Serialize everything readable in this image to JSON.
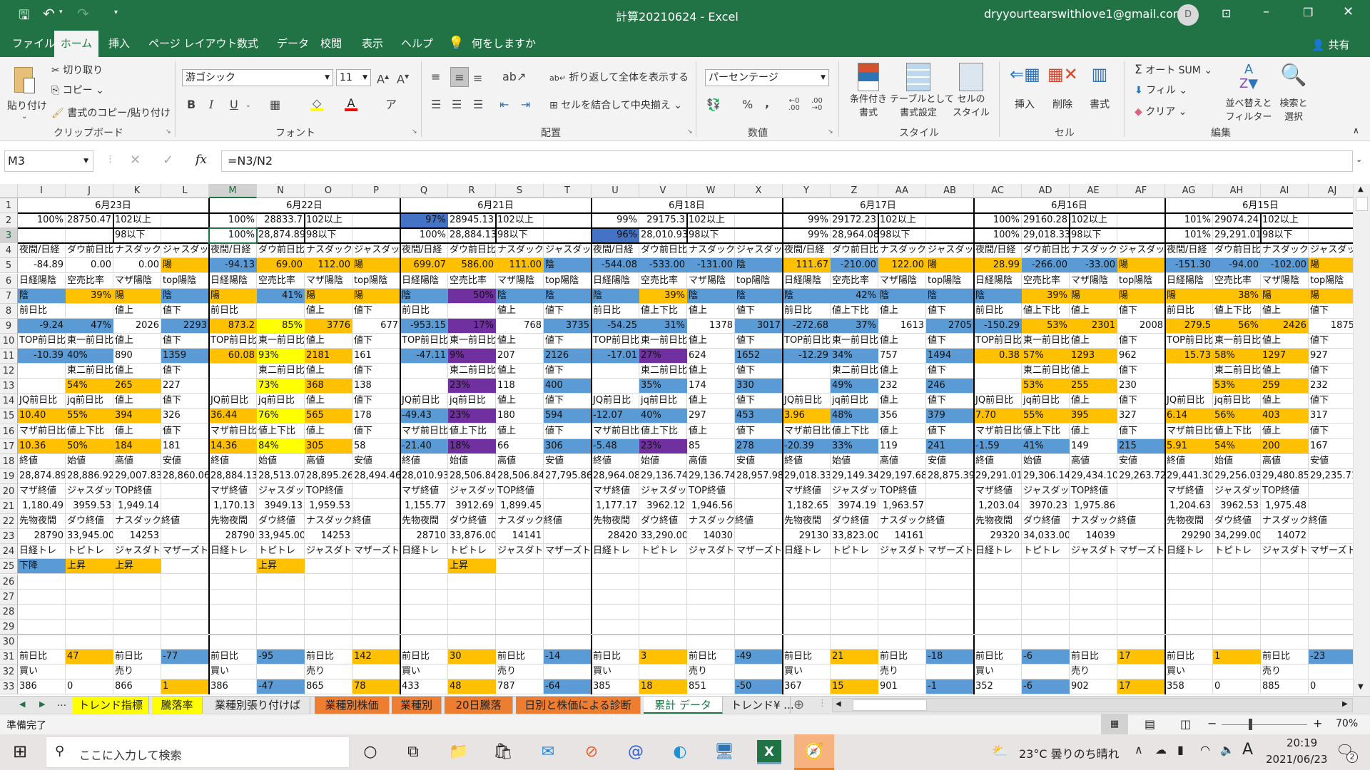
{
  "window": {
    "title": "計算20210624  -  Excel",
    "account": "dryyourtearswithlove1@gmail.com",
    "avatar": "D"
  },
  "menu": {
    "tabs": [
      "ファイル",
      "ホーム",
      "挿入",
      "ページ レイアウト",
      "数式",
      "データ",
      "校閲",
      "表示",
      "ヘルプ"
    ],
    "active": 1,
    "tell_me": "何をしますか",
    "share": "共有"
  },
  "ribbon": {
    "clipboard": {
      "paste": "貼り付け",
      "cut": "切り取り",
      "copy": "コピー",
      "format_painter": "書式のコピー/貼り付け",
      "label": "クリップボード"
    },
    "font": {
      "name": "游ゴシック",
      "size": "11",
      "bold": "B",
      "italic": "I",
      "underline": "U",
      "label": "フォント",
      "fill_color": "#FFFF00",
      "font_color": "#FF0000"
    },
    "alignment": {
      "wrap": "折り返して全体を表示する",
      "merge": "セルを結合して中央揃え",
      "label": "配置"
    },
    "number": {
      "format": "パーセンテージ",
      "percent": "%",
      "comma": ",",
      "label": "数値"
    },
    "styles": {
      "conditional": [
        "条件付き",
        "書式"
      ],
      "table": [
        "テーブルとして",
        "書式設定"
      ],
      "cell": [
        "セルの",
        "スタイル"
      ],
      "label": "スタイル"
    },
    "cells": {
      "insert": "挿入",
      "delete": "削除",
      "format": "書式",
      "label": "セル"
    },
    "editing": {
      "autosum": "オート SUM",
      "fill": "フィル",
      "clear": "クリア",
      "sort": [
        "並べ替えと",
        "フィルター"
      ],
      "find": [
        "検索と",
        "選択"
      ],
      "label": "編集"
    }
  },
  "formula_bar": {
    "name_box": "M3",
    "formula": "=N3/N2"
  },
  "sheet": {
    "selected_cell": "M3",
    "fill_colors": {
      "o": "#FFC000",
      "b": "#5B9BD5",
      "y": "#FFFF00",
      "p": "#7030A0",
      "d": "#4472C4"
    },
    "columns": [
      "I",
      "J",
      "K",
      "L",
      "M",
      "N",
      "O",
      "P",
      "Q",
      "R",
      "S",
      "T",
      "U",
      "V",
      "W",
      "X",
      "Y",
      "Z",
      "AA",
      "AB",
      "AC",
      "AD",
      "AE",
      "AF",
      "AG",
      "AH",
      "AI",
      "AJ"
    ],
    "dates": [
      "6月23日",
      "6月22日",
      "6月21日",
      "6月18日",
      "6月17日",
      "6月16日",
      "6月15日"
    ],
    "rows": [
      {
        "num": "1",
        "cells": [],
        "fills": ""
      },
      {
        "num": "2",
        "cells": [
          "100%",
          "28750.47",
          "102以上",
          "",
          "100%",
          "28833.7",
          "102以上",
          "",
          "97%",
          "28945.13",
          "102以上",
          "",
          "99%",
          "29175.3",
          "102以上",
          "",
          "99%",
          "29172.23",
          "102以上",
          "",
          "100%",
          "29160.28",
          "102以上",
          "",
          "101%",
          "29074.24",
          "102以上",
          ""
        ],
        "fills": "....|....|d...|....|....|....|...."
      },
      {
        "num": "3",
        "cells": [
          "",
          "",
          "98以下",
          "",
          "100%",
          "28,874.89",
          "98以下",
          "",
          "100%",
          "28,884.13",
          "98以下",
          "",
          "96%",
          "28,010.93",
          "98以下",
          "",
          "99%",
          "28,964.08",
          "98以下",
          "",
          "100%",
          "29,018.33",
          "98以下",
          "",
          "101%",
          "29,291.01",
          "98以下",
          ""
        ],
        "fills": "....|....|....|d...|....|....|...."
      },
      {
        "num": "4",
        "cells": [
          "夜間/日経",
          "ダウ前日比",
          "ナスダック",
          "ジャスダック",
          "夜間/日経",
          "ダウ前日比",
          "ナスダック",
          "ジャスダック",
          "夜間/日経",
          "ダウ前日比",
          "ナスダック",
          "ジャスダック",
          "夜間/日経",
          "ダウ前日比",
          "ナスダック",
          "ジャスダック",
          "夜間/日経",
          "ダウ前日比",
          "ナスダック",
          "ジャスダック",
          "夜間/日経",
          "ダウ前日比",
          "ナスダック",
          "ジャスダック",
          "夜間/日経",
          "ダウ前日比",
          "ナスダック",
          "ジャスダック"
        ],
        "fills": ""
      },
      {
        "num": "5",
        "cells": [
          "-84.89",
          "0.00",
          "0.00",
          "陽",
          "-94.13",
          "69.00",
          "112.00",
          "陽",
          "699.07",
          "586.00",
          "111.00",
          "陰",
          "-544.08",
          "-533.00",
          "-131.00",
          "陰",
          "111.67",
          "-210.00",
          "122.00",
          "陽",
          "28.99",
          "-266.00",
          "-33.00",
          "陽",
          "-151.30",
          "-94.00",
          "-102.00",
          "陽"
        ],
        "fills": "...o|booo|ooob|bbbb|oboo|obbo|bbbo"
      },
      {
        "num": "6",
        "cells": [
          "日経陽陰",
          "空売比率",
          "マザ陽陰",
          "top陽陰",
          "日経陽陰",
          "空売比率",
          "マザ陽陰",
          "top陽陰",
          "日経陽陰",
          "空売比率",
          "マザ陽陰",
          "top陽陰",
          "日経陽陰",
          "空売比率",
          "マザ陽陰",
          "top陽陰",
          "日経陽陰",
          "空売比率",
          "マザ陽陰",
          "top陽陰",
          "日経陽陰",
          "空売比率",
          "マザ陽陰",
          "top陽陰",
          "日経陽陰",
          "空売比率",
          "マザ陽陰",
          "top陽陰"
        ],
        "fills": ""
      },
      {
        "num": "7",
        "cells": [
          "陰",
          "39%",
          "陽",
          "陰",
          "陽",
          "41%",
          "陽",
          "陽",
          "陰",
          "50%",
          "陰",
          "陰",
          "陰",
          "39%",
          "陰",
          "陰",
          "陰",
          "42%",
          "陰",
          "陰",
          "陰",
          "39%",
          "陽",
          "陽",
          "陽",
          "38%",
          "陽",
          "陽"
        ],
        "fills": "boob|oboo|bpbb|bobb|bbbb|booo|oooo"
      },
      {
        "num": "8",
        "cells": [
          "前日比",
          "",
          "値上",
          "値下",
          "前日比",
          "",
          "値上",
          "値下",
          "前日比",
          "",
          "値上",
          "値下",
          "前日比",
          "値上下比",
          "値上",
          "値下",
          "前日比",
          "値上下比",
          "値上",
          "値下",
          "前日比",
          "値上下比",
          "値上",
          "値下",
          "前日比",
          "値上下比",
          "値上",
          "値下"
        ],
        "fills": ""
      },
      {
        "num": "9",
        "cells": [
          "-9.24",
          "47%",
          "2026",
          "2293",
          "873.2",
          "85%",
          "3776",
          "677",
          "-953.15",
          "17%",
          "768",
          "3735",
          "-54.25",
          "31%",
          "1378",
          "3017",
          "-272.68",
          "37%",
          "1613",
          "2705",
          "-150.29",
          "53%",
          "2301",
          "2008",
          "279.5",
          "56%",
          "2426",
          "1875"
        ],
        "fills": "bb.b|oyo.|bp.b|bb.b|bb.b|boo.|ooo."
      },
      {
        "num": "10",
        "cells": [
          "TOP前日比",
          "東一前日比",
          "値上",
          "値下",
          "TOP前日比",
          "東一前日比",
          "値上",
          "値下",
          "TOP前日比",
          "東一前日比",
          "値上",
          "値下",
          "TOP前日比",
          "東一前日比",
          "値上",
          "値下",
          "TOP前日比",
          "東一前日比",
          "値上",
          "値下",
          "TOP前日比",
          "東一前日比",
          "値上",
          "値下",
          "TOP前日比",
          "東一前日比",
          "値上",
          "値下"
        ],
        "fills": ""
      },
      {
        "num": "11",
        "cells": [
          "-10.39",
          "40%",
          "890",
          "1359",
          "60.08",
          "93%",
          "2181",
          "161",
          "-47.11",
          "9%",
          "207",
          "2126",
          "-17.01",
          "27%",
          "624",
          "1652",
          "-12.29",
          "34%",
          "757",
          "1494",
          "0.38",
          "57%",
          "1293",
          "962",
          "15.73",
          "58%",
          "1297",
          "927"
        ],
        "fills": "bb.b|oyo.|bp.b|bp.b|bb.b|ooo.|ooo."
      },
      {
        "num": "12",
        "cells": [
          "",
          "東二前日比",
          "値上",
          "値下",
          "",
          "東二前日比",
          "値上",
          "値下",
          "",
          "東二前日比",
          "値上",
          "値下",
          "",
          "東二前日比",
          "値上",
          "値下",
          "",
          "東二前日比",
          "値上",
          "値下",
          "",
          "東二前日比",
          "値上",
          "値下",
          "",
          "東二前日比",
          "値上",
          "値下"
        ],
        "fills": ""
      },
      {
        "num": "13",
        "cells": [
          "",
          "54%",
          "265",
          "227",
          "",
          "73%",
          "368",
          "138",
          "",
          "23%",
          "118",
          "400",
          "",
          "35%",
          "174",
          "330",
          "",
          "49%",
          "232",
          "246",
          "",
          "53%",
          "255",
          "230",
          "",
          "53%",
          "259",
          "232"
        ],
        "fills": ".oo.|.yo.|.p.b|.b.b|.b.b|.oo.|.oo."
      },
      {
        "num": "14",
        "cells": [
          "JQ前日比",
          "jq前日比",
          "値上",
          "値下",
          "JQ前日比",
          "jq前日比",
          "値上",
          "値下",
          "JQ前日比",
          "jq前日比",
          "値上",
          "値下",
          "JQ前日比",
          "jq前日比",
          "値上",
          "値下",
          "JQ前日比",
          "jq前日比",
          "値上",
          "値下",
          "JQ前日比",
          "jq前日比",
          "値上",
          "値下",
          "JQ前日比",
          "jq前日比",
          "値上",
          "値下"
        ],
        "fills": ""
      },
      {
        "num": "15",
        "cells": [
          "10.40",
          "55%",
          "394",
          "326",
          "36.44",
          "76%",
          "565",
          "178",
          "-49.43",
          "23%",
          "180",
          "594",
          "-12.07",
          "40%",
          "297",
          "453",
          "3.96",
          "48%",
          "356",
          "379",
          "7.70",
          "55%",
          "395",
          "327",
          "6.14",
          "56%",
          "403",
          "317"
        ],
        "fills": "ooo.|oyo.|bp.b|bb.b|ob.b|ooo.|ooo."
      },
      {
        "num": "16",
        "cells": [
          "マザ前日比",
          "値上下比",
          "値上",
          "値下",
          "マザ前日比",
          "値上下比",
          "値上",
          "値下",
          "マザ前日比",
          "値上下比",
          "値上",
          "値下",
          "マザ前日比",
          "値上下比",
          "値上",
          "値下",
          "マザ前日比",
          "値上下比",
          "値上",
          "値下",
          "マザ前日比",
          "値上下比",
          "値上",
          "値下",
          "マザ前日比",
          "値上下比",
          "値上",
          "値下"
        ],
        "fills": ""
      },
      {
        "num": "17",
        "cells": [
          "10.36",
          "50%",
          "184",
          "181",
          "14.36",
          "84%",
          "305",
          "58",
          "-21.40",
          "18%",
          "66",
          "306",
          "-5.48",
          "23%",
          "85",
          "278",
          "-20.39",
          "33%",
          "119",
          "241",
          "-1.59",
          "41%",
          "149",
          "215",
          "5.91",
          "54%",
          "200",
          "167"
        ],
        "fills": "ooo.|oyo.|bp.b|bp.b|bb.b|bb.b|ooo."
      },
      {
        "num": "18",
        "cells": [
          "終値",
          "始値",
          "高値",
          "安値",
          "終値",
          "始値",
          "高値",
          "安値",
          "終値",
          "始値",
          "高値",
          "安値",
          "終値",
          "始値",
          "高値",
          "安値",
          "終値",
          "始値",
          "高値",
          "安値",
          "終値",
          "始値",
          "高値",
          "安値",
          "終値",
          "始値",
          "高値",
          "安値"
        ],
        "fills": ""
      },
      {
        "num": "19",
        "cells": [
          "28,874.89",
          "28,886.92",
          "29,007.83",
          "28,860.06",
          "28,884.13",
          "28,513.07",
          "28,895.26",
          "28,494.46",
          "28,010.93",
          "28,506.84",
          "28,506.84",
          "27,795.86",
          "28,964.08",
          "29,136.74",
          "29,136.74",
          "28,957.98",
          "29,018.33",
          "29,149.34",
          "29,197.68",
          "28,875.39",
          "29,291.01",
          "29,306.14",
          "29,434.10",
          "29,263.72",
          "29,441.30",
          "29,256.03",
          "29,480.85",
          "29,235.71"
        ],
        "fills": ""
      },
      {
        "num": "20",
        "cells": [
          "マザ終値",
          "ジャスダック",
          "TOP終値",
          "",
          "マザ終値",
          "ジャスダック",
          "TOP終値",
          "",
          "マザ終値",
          "ジャスダック",
          "TOP終値",
          "",
          "マザ終値",
          "ジャスダック",
          "TOP終値",
          "",
          "マザ終値",
          "ジャスダック",
          "TOP終値",
          "",
          "マザ終値",
          "ジャスダック",
          "TOP終値",
          "",
          "マザ終値",
          "ジャスダック",
          "TOP終値",
          ""
        ],
        "fills": ""
      },
      {
        "num": "21",
        "cells": [
          "1,180.49",
          "3959.53",
          "1,949.14",
          "",
          "1,170.13",
          "3949.13",
          "1,959.53",
          "",
          "1,155.77",
          "3912.69",
          "1,899.45",
          "",
          "1,177.17",
          "3962.12",
          "1,946.56",
          "",
          "1,182.65",
          "3974.19",
          "1,963.57",
          "",
          "1,203.04",
          "3970.23",
          "1,975.86",
          "",
          "1,204.63",
          "3962.53",
          "1,975.48",
          ""
        ],
        "fills": ""
      },
      {
        "num": "22",
        "cells": [
          "先物夜間",
          "ダウ終値",
          "ナスダック終値",
          "",
          "先物夜間",
          "ダウ終値",
          "ナスダック終値",
          "",
          "先物夜間",
          "ダウ終値",
          "ナスダック終値",
          "",
          "先物夜間",
          "ダウ終値",
          "ナスダック終値",
          "",
          "先物夜間",
          "ダウ終値",
          "ナスダック終値",
          "",
          "先物夜間",
          "ダウ終値",
          "ナスダック終値",
          "",
          "先物夜間",
          "ダウ終値",
          "ナスダック終値",
          ""
        ],
        "fills": ""
      },
      {
        "num": "23",
        "cells": [
          "28790",
          "33,945.00",
          "14253",
          "",
          "28790",
          "33,945.00",
          "14253",
          "",
          "28710",
          "33,876.00",
          "14141",
          "",
          "28420",
          "33,290.00",
          "14030",
          "",
          "29130",
          "33,823.00",
          "14161",
          "",
          "29320",
          "34,033.00",
          "14039",
          "",
          "29290",
          "34,299.00",
          "14072",
          ""
        ],
        "fills": ""
      },
      {
        "num": "24",
        "cells": [
          "日経トレ",
          "トピトレ",
          "ジャスダトレ",
          "マザーズトレ",
          "日経トレ",
          "トピトレ",
          "ジャスダトレ",
          "マザーズトレ",
          "日経トレ",
          "トピトレ",
          "ジャスダトレ",
          "マザーズトレ",
          "日経トレ",
          "トピトレ",
          "ジャスダトレ",
          "マザーズトレ",
          "日経トレ",
          "トピトレ",
          "ジャスダトレ",
          "マザーズトレ",
          "日経トレ",
          "トピトレ",
          "ジャスダトレ",
          "マザーズトレ",
          "日経トレ",
          "トピトレ",
          "ジャスダトレ",
          "マザーズトレ"
        ],
        "fills": ""
      },
      {
        "num": "25",
        "cells": [
          "下降",
          "上昇",
          "上昇",
          "",
          "",
          "上昇",
          "",
          "",
          "",
          "上昇",
          "",
          "",
          "",
          "",
          "",
          "",
          "",
          "",
          "",
          "",
          "",
          "",
          "",
          "",
          "",
          "",
          "",
          ""
        ],
        "fills": "boo.|.o..|.o..|....|....|....|...."
      },
      {
        "num": "26",
        "cells": [],
        "fills": ""
      },
      {
        "num": "27",
        "cells": [],
        "fills": ""
      },
      {
        "num": "28",
        "cells": [],
        "fills": ""
      },
      {
        "num": "29",
        "cells": [],
        "fills": ""
      },
      {
        "num": "30",
        "cells": [],
        "fills": ""
      },
      {
        "num": "31",
        "cells": [
          "前日比",
          "47",
          "前日比",
          "-77",
          "前日比",
          "-95",
          "前日比",
          "142",
          "前日比",
          "30",
          "前日比",
          "-14",
          "前日比",
          "3",
          "前日比",
          "-49",
          "前日比",
          "21",
          "前日比",
          "-18",
          "前日比",
          "-6",
          "前日比",
          "17",
          "前日比",
          "1",
          "前日比",
          "-23"
        ],
        "fills": ".o.b|.b.o|.o.b|.o.b|.o.b|.b.o|.o.b"
      },
      {
        "num": "32",
        "cells": [
          "買い",
          "",
          "売り",
          "",
          "買い",
          "",
          "売り",
          "",
          "買い",
          "",
          "売り",
          "",
          "買い",
          "",
          "売り",
          "",
          "買い",
          "",
          "売り",
          "",
          "買い",
          "",
          "売り",
          "",
          "買い",
          "",
          "売り",
          ""
        ],
        "fills": ""
      },
      {
        "num": "33",
        "cells": [
          "386",
          "0",
          "866",
          "1",
          "386",
          "-47",
          "865",
          "78",
          "433",
          "48",
          "787",
          "-64",
          "385",
          "18",
          "851",
          "-50",
          "367",
          "15",
          "901",
          "-1",
          "352",
          "-6",
          "902",
          "17",
          "358",
          "0",
          "885",
          "0"
        ],
        "fills": "...o|.b.o|.o.b|.o.b|.o.b|.b.o|...."
      }
    ]
  },
  "sheet_tabs": [
    {
      "label": "トレンド指標",
      "color": "#FFFF00"
    },
    {
      "label": "騰落率",
      "color": "#FFFF00"
    },
    {
      "label": "業種別張り付けば",
      "color": ""
    },
    {
      "label": "業種別株価",
      "color": "#ED7D31"
    },
    {
      "label": "業種別",
      "color": "#ED7D31"
    },
    {
      "label": "20日騰落",
      "color": "#ED7D31"
    },
    {
      "label": "日別と株価による診断",
      "color": "#ED7D31"
    },
    {
      "label": "累計 データ",
      "color": "",
      "active": true
    },
    {
      "label": "トレンド¥ ...",
      "color": ""
    }
  ],
  "status": {
    "ready": "準備完了",
    "zoom": "70%",
    "zoom_level": 0.7
  },
  "taskbar": {
    "search_placeholder": "ここに入力して検索",
    "apps": [
      "cortana-icon",
      "task-view-icon",
      "file-explorer-icon",
      "store-icon",
      "mail-icon",
      "app-icon",
      "at-menu-icon",
      "edge-icon",
      "remote-icon",
      "excel-icon",
      "browser-icon"
    ],
    "weather": "23°C 曇りのち晴れ",
    "ime": "A",
    "time": "20:19",
    "date": "2021/06/23",
    "notifications": "2"
  }
}
